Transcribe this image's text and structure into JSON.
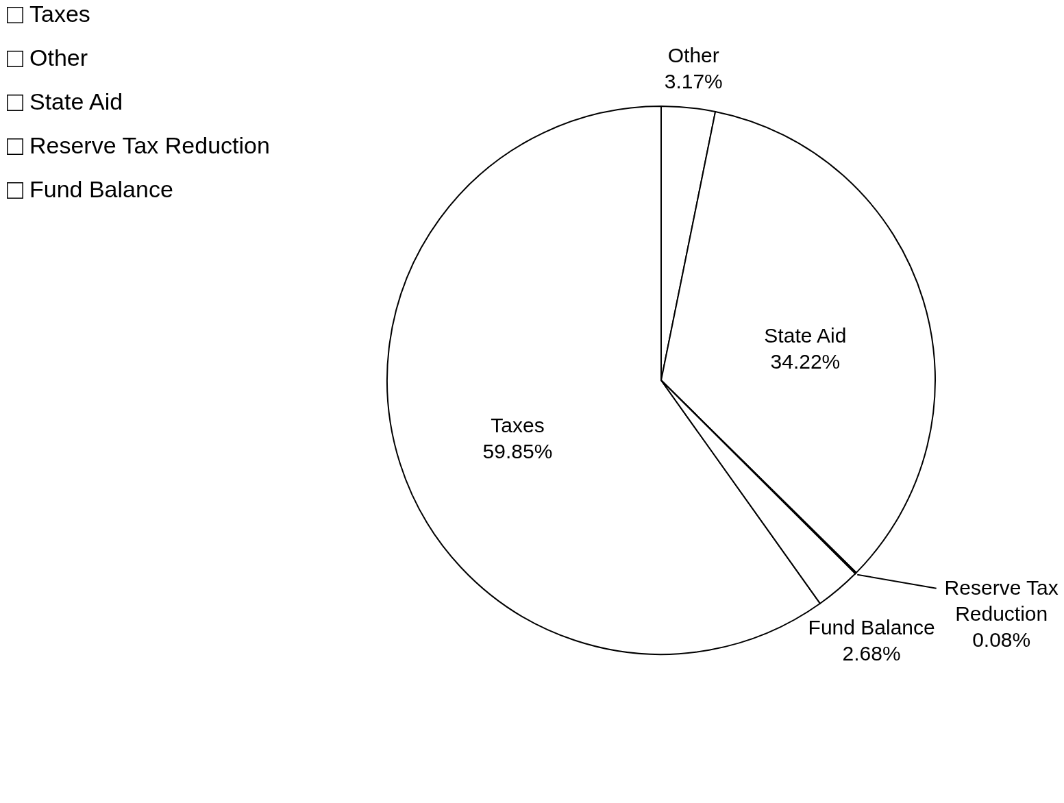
{
  "chart_data": {
    "type": "pie",
    "categories": [
      "Taxes",
      "Other",
      "State Aid",
      "Reserve Tax Reduction",
      "Fund Balance"
    ],
    "values": [
      59.85,
      3.17,
      34.22,
      0.08,
      2.68
    ],
    "value_labels": [
      "59.85%",
      "3.17%",
      "34.22%",
      "0.08%",
      "2.68%"
    ],
    "colors": [
      "#ffffff",
      "#ffffff",
      "#ffffff",
      "#ffffff",
      "#ffffff"
    ],
    "legend": "left"
  }
}
